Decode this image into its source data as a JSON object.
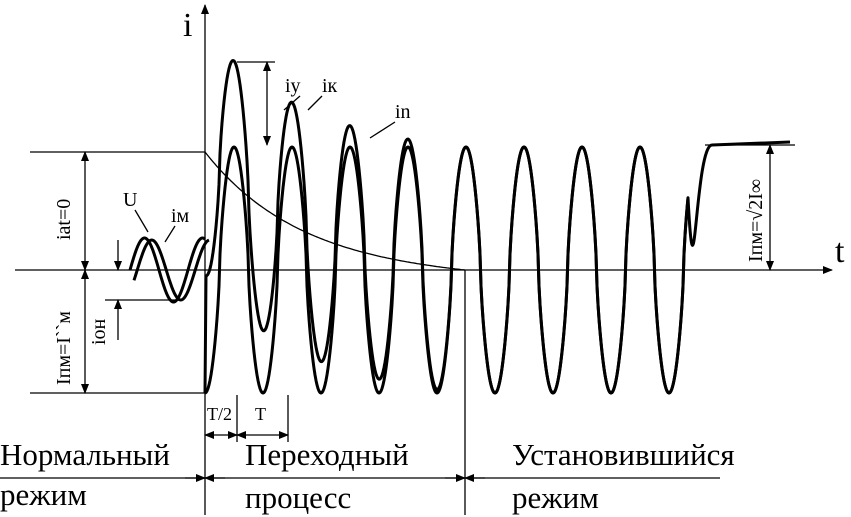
{
  "axes": {
    "y_label": "i",
    "x_label": "t"
  },
  "curves": {
    "iy": "iу",
    "ik": "iк",
    "in": "in",
    "u": "U",
    "im": "iм"
  },
  "dimensions": {
    "iat0": "iat=0",
    "inm_left": "Iпм=I``м",
    "ion": "ioн",
    "inm_right": "Iпм=√2I∞",
    "half_period": "T/2",
    "period": "T"
  },
  "regimes": [
    {
      "lines": [
        "Нормальный",
        "режим"
      ]
    },
    {
      "lines": [
        "Переходный",
        "процесс"
      ]
    },
    {
      "lines": [
        "Установившийся",
        "режим"
      ]
    }
  ]
}
